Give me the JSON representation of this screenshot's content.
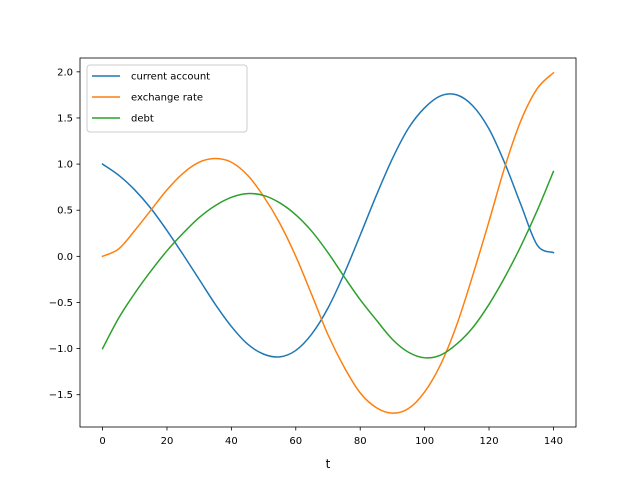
{
  "chart_data": {
    "type": "line",
    "xlabel": "t",
    "ylabel": "",
    "xlim": [
      -7,
      147
    ],
    "ylim": [
      -1.85,
      2.15
    ],
    "xticks": [
      0,
      20,
      40,
      60,
      80,
      100,
      120,
      140
    ],
    "yticks": [
      -1.5,
      -1.0,
      -0.5,
      0.0,
      0.5,
      1.0,
      1.5,
      2.0
    ],
    "xtick_labels": [
      "0",
      "20",
      "40",
      "60",
      "80",
      "100",
      "120",
      "140"
    ],
    "ytick_labels": [
      "−1.5",
      "−1.0",
      "−0.5",
      "0.0",
      "0.5",
      "1.0",
      "1.5",
      "2.0"
    ],
    "grid": false,
    "legend_position": "top-left",
    "x": [
      0,
      5,
      10,
      15,
      20,
      25,
      30,
      35,
      40,
      45,
      50,
      55,
      60,
      65,
      70,
      75,
      80,
      85,
      90,
      95,
      100,
      105,
      110,
      115,
      120,
      125,
      130,
      135,
      140
    ],
    "series": [
      {
        "name": "current account",
        "color": "#1f77b4",
        "values": [
          1.0,
          0.88,
          0.72,
          0.52,
          0.28,
          0.02,
          -0.25,
          -0.52,
          -0.76,
          -0.95,
          -1.06,
          -1.09,
          -1.02,
          -0.84,
          -0.56,
          -0.19,
          0.23,
          0.66,
          1.06,
          1.39,
          1.61,
          1.74,
          1.75,
          1.63,
          1.38,
          1.0,
          0.55,
          0.12,
          0.04
        ]
      },
      {
        "name": "exchange rate",
        "color": "#ff7f0e",
        "values": [
          0.0,
          0.08,
          0.28,
          0.5,
          0.72,
          0.9,
          1.02,
          1.06,
          1.02,
          0.88,
          0.65,
          0.36,
          0.0,
          -0.42,
          -0.85,
          -1.2,
          -1.48,
          -1.64,
          -1.7,
          -1.65,
          -1.47,
          -1.17,
          -0.74,
          -0.2,
          0.38,
          0.98,
          1.48,
          1.82,
          1.99
        ]
      },
      {
        "name": "debt",
        "color": "#2ca02c",
        "values": [
          -1.0,
          -0.67,
          -0.4,
          -0.16,
          0.06,
          0.25,
          0.42,
          0.55,
          0.64,
          0.68,
          0.66,
          0.58,
          0.45,
          0.27,
          0.04,
          -0.22,
          -0.47,
          -0.69,
          -0.9,
          -1.04,
          -1.1,
          -1.07,
          -0.95,
          -0.77,
          -0.52,
          -0.22,
          0.12,
          0.5,
          0.92
        ]
      }
    ]
  }
}
